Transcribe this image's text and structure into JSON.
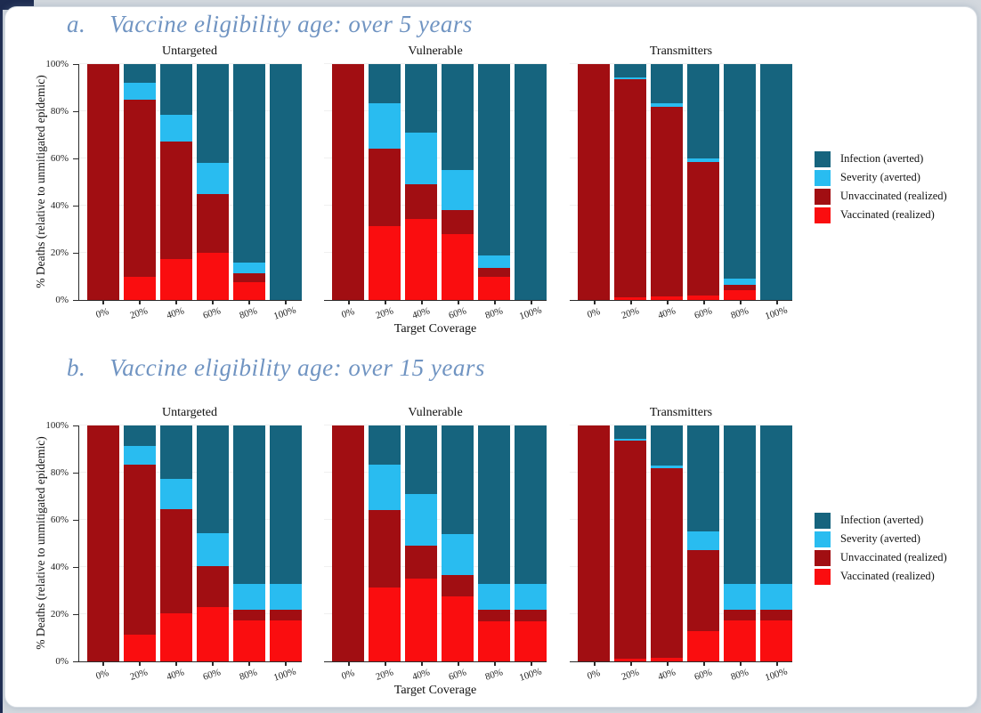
{
  "figure": {
    "ylabel": "% Deaths (relative to unmitigated epidemic)",
    "xlabel": "Target Coverage",
    "yticks": [
      "0%",
      "20%",
      "40%",
      "60%",
      "80%",
      "100%"
    ],
    "legend": [
      {
        "key": "infection",
        "label": "Infection (averted)",
        "color": "#16647E"
      },
      {
        "key": "severity",
        "label": "Severity (averted)",
        "color": "#29BCF0"
      },
      {
        "key": "unvaccinated",
        "label": "Unvaccinated (realized)",
        "color": "#A10E12"
      },
      {
        "key": "vaccinated",
        "label": "Vaccinated (realized)",
        "color": "#FA0D0F"
      }
    ],
    "title_color": "#7094C2"
  },
  "chart_data": [
    {
      "type": "bar",
      "stacked": true,
      "panel_label": "a.",
      "title": "Vaccine eligibility age: over 5 years",
      "categories": [
        "0%",
        "20%",
        "40%",
        "60%",
        "80%",
        "100%"
      ],
      "xlabel": "Target Coverage",
      "ylabel": "% Deaths (relative to unmitigated epidemic)",
      "ylim": [
        0,
        100
      ],
      "stack_order_bottom_to_top": [
        "vaccinated",
        "unvaccinated",
        "severity",
        "infection"
      ],
      "facets": [
        {
          "title": "Untargeted",
          "series": {
            "vaccinated": [
              0,
              10,
              17.5,
              20,
              7.5,
              0
            ],
            "unvaccinated": [
              100,
              75,
              49.5,
              25,
              4,
              0
            ],
            "severity": [
              0,
              7,
              11.5,
              13,
              4.5,
              0
            ],
            "infection": [
              0,
              8,
              21.5,
              42,
              84,
              100
            ]
          }
        },
        {
          "title": "Vulnerable",
          "series": {
            "vaccinated": [
              0,
              31.5,
              34.5,
              28,
              10,
              0
            ],
            "unvaccinated": [
              100,
              32.5,
              14.5,
              10,
              3.5,
              0
            ],
            "severity": [
              0,
              19.5,
              22,
              17,
              5.5,
              0
            ],
            "infection": [
              0,
              16.5,
              29,
              45,
              81,
              100
            ]
          }
        },
        {
          "title": "Transmitters",
          "series": {
            "vaccinated": [
              0,
              1,
              1.5,
              2,
              4,
              0
            ],
            "unvaccinated": [
              100,
              92.5,
              80.5,
              56.5,
              2.5,
              0
            ],
            "severity": [
              0,
              1,
              1.5,
              1.5,
              2.5,
              0
            ],
            "infection": [
              0,
              5.5,
              16.5,
              40,
              91,
              100
            ]
          }
        }
      ]
    },
    {
      "type": "bar",
      "stacked": true,
      "panel_label": "b.",
      "title": "Vaccine eligibility age: over 15 years",
      "categories": [
        "0%",
        "20%",
        "40%",
        "60%",
        "80%",
        "100%"
      ],
      "xlabel": "Target Coverage",
      "ylabel": "% Deaths (relative to unmitigated epidemic)",
      "ylim": [
        0,
        100
      ],
      "stack_order_bottom_to_top": [
        "vaccinated",
        "unvaccinated",
        "severity",
        "infection"
      ],
      "facets": [
        {
          "title": "Untargeted",
          "series": {
            "vaccinated": [
              0,
              11.5,
              20.5,
              23,
              17.5,
              17.5
            ],
            "unvaccinated": [
              100,
              72,
              44,
              17.5,
              4.5,
              4.5
            ],
            "severity": [
              0,
              8,
              13,
              14,
              11,
              11
            ],
            "infection": [
              0,
              8.5,
              22.5,
              45.5,
              67,
              67
            ]
          }
        },
        {
          "title": "Vulnerable",
          "series": {
            "vaccinated": [
              0,
              31.5,
              35,
              27.5,
              17,
              17
            ],
            "unvaccinated": [
              100,
              32.5,
              14,
              9,
              5,
              5
            ],
            "severity": [
              0,
              19.5,
              22,
              17.5,
              11,
              11
            ],
            "infection": [
              0,
              16.5,
              29,
              46,
              67,
              67
            ]
          }
        },
        {
          "title": "Transmitters",
          "series": {
            "vaccinated": [
              0,
              1,
              1.5,
              13,
              17.5,
              17.5
            ],
            "unvaccinated": [
              100,
              92.5,
              80.5,
              34,
              4.5,
              4.5
            ],
            "severity": [
              0,
              1,
              1,
              8,
              11,
              11
            ],
            "infection": [
              0,
              5.5,
              17,
              45,
              67,
              67
            ]
          }
        }
      ]
    }
  ]
}
